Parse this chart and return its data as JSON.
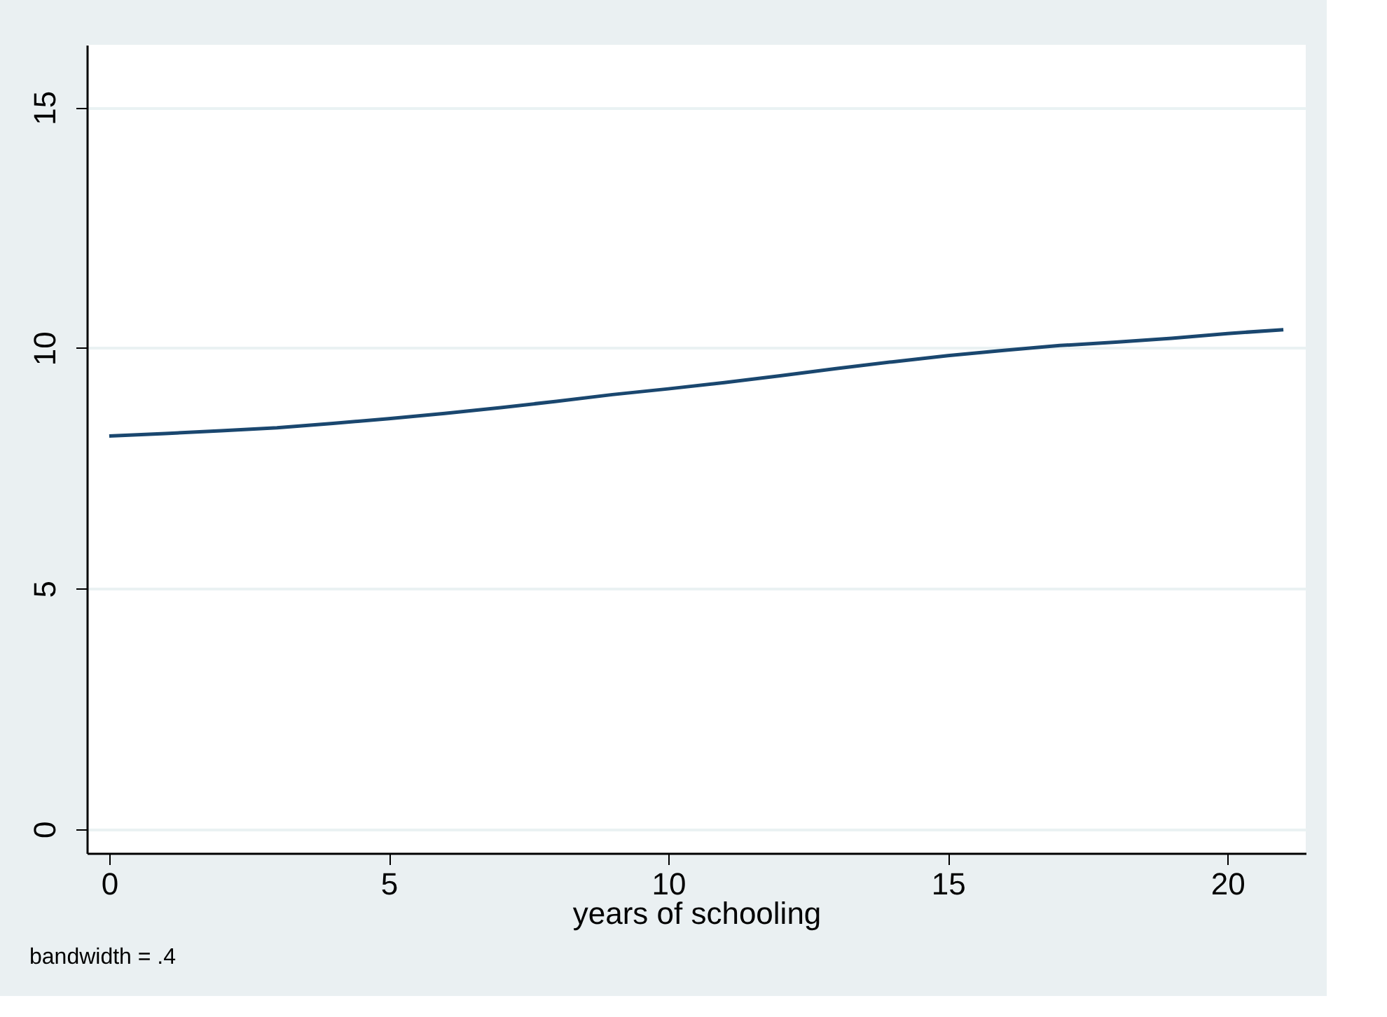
{
  "chart_data": {
    "type": "line",
    "xlabel": "years of schooling",
    "x": [
      0,
      1,
      2,
      3,
      4,
      5,
      6,
      7,
      8,
      9,
      10,
      11,
      12,
      13,
      14,
      15,
      16,
      17,
      18,
      19,
      20,
      21
    ],
    "series": [
      {
        "color": "#1a476f",
        "values": [
          8.17,
          8.22,
          8.28,
          8.34,
          8.43,
          8.53,
          8.64,
          8.76,
          8.89,
          9.03,
          9.15,
          9.28,
          9.42,
          9.57,
          9.71,
          9.84,
          9.95,
          10.05,
          10.12,
          10.2,
          10.3,
          10.38
        ]
      }
    ],
    "xlim": [
      -0.4,
      21.4
    ],
    "ylim": [
      -0.5,
      16.3
    ],
    "xticks": [
      0,
      5,
      10,
      15,
      20
    ],
    "yticks": [
      0,
      5,
      10,
      15
    ],
    "grid": "y",
    "annotations": [
      "bandwidth = .4"
    ]
  }
}
